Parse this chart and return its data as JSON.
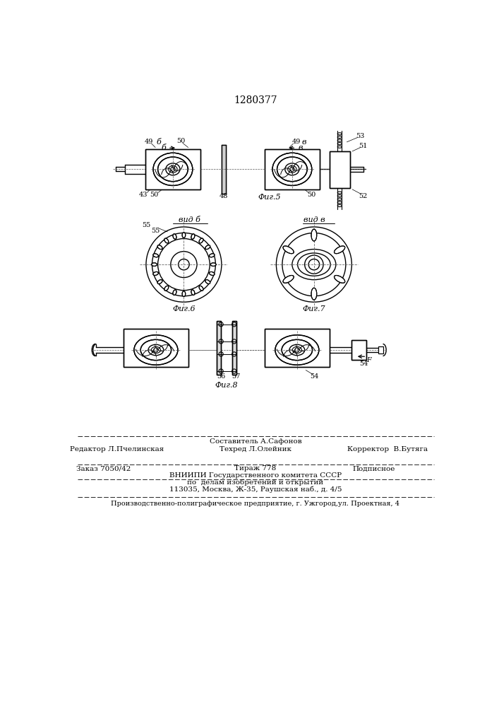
{
  "title": "1280377",
  "bg_color": "#ffffff",
  "line_color": "#000000",
  "fig5_label": "Фиг.5",
  "fig6_label": "Фиг.6",
  "fig7_label": "Фиг.7",
  "fig8_label": "Фиг.8",
  "vid_b_label": "вид б",
  "vid_v_label": "вид в",
  "footer_line1_col1": "Редактор Л.Пчелинская",
  "footer_line1_col2_top": "Составитель А.Сафонов",
  "footer_line1_col2_bot": "Техред Л.Олейник",
  "footer_line1_col3": "Корректор  В.Бутяга",
  "footer_line2_col1": "Заказ 7050/42",
  "footer_line2_col2": "Тираж 778",
  "footer_line2_col3": "Подписное",
  "footer_line3": "ВНИИПИ Государственного комитета СССР",
  "footer_line4": "по  делам изобретений и открытий",
  "footer_line5": "113035, Москва, Ж-35, Раушская наб., д. 4/5",
  "footer_last": "Производственно-полиграфическое предприятие, г. Ужгород,ул. Проектная, 4"
}
